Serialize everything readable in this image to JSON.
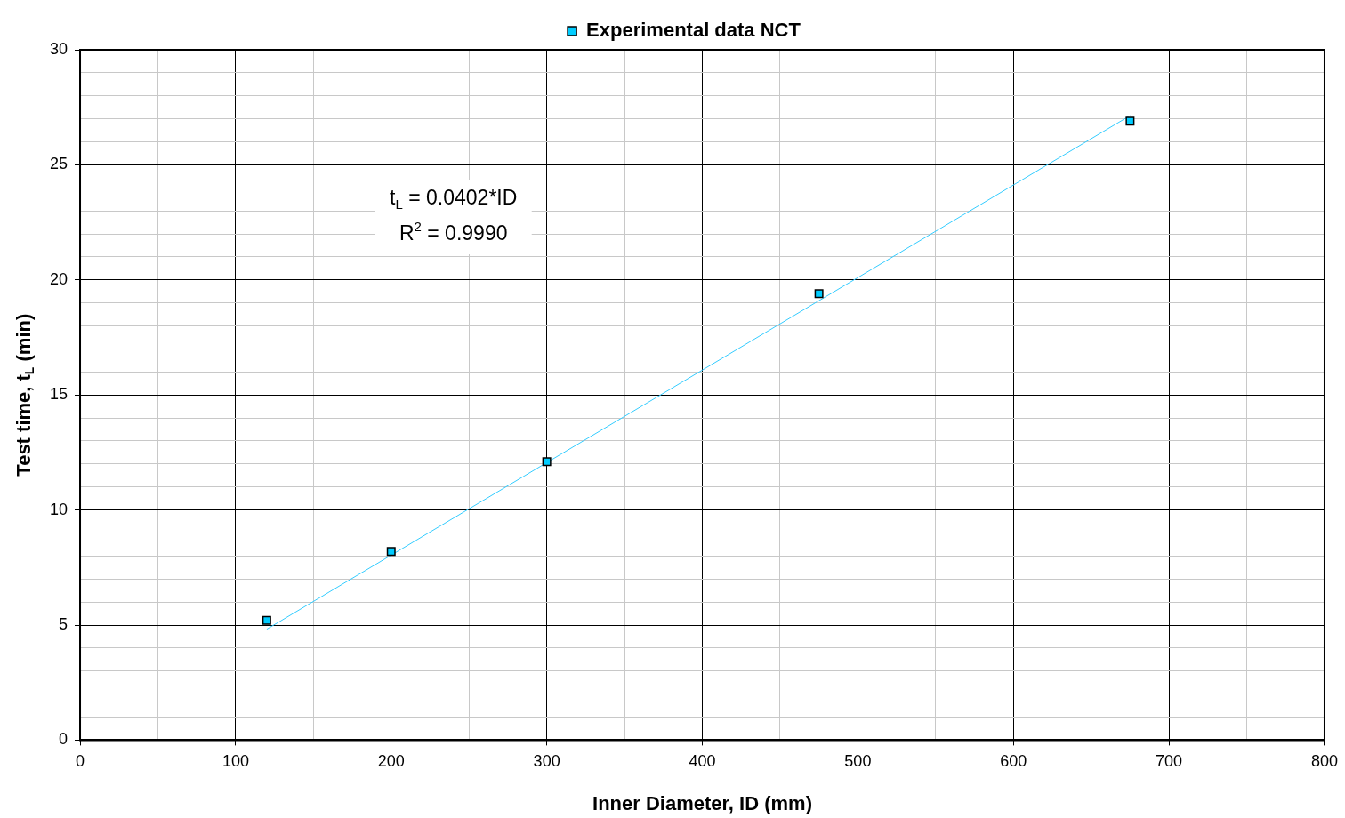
{
  "chart_data": {
    "type": "scatter",
    "xlabel": "Inner Diameter, ID (mm)",
    "ylabel": "Test time, t$_{L}$ (min)",
    "annotations": [
      "t$_{L}$ = 0.0402*ID",
      "R$^{2}$ = 0.9990"
    ],
    "xlim": [
      0,
      800
    ],
    "ylim": [
      0,
      30
    ],
    "xticks": [
      0,
      {
        "value": 50,
        "label": null
      },
      100,
      {
        "value": 150,
        "label": null
      },
      200,
      {
        "value": 250,
        "label": null
      },
      300,
      {
        "value": 350,
        "label": null
      },
      400,
      {
        "value": 450,
        "label": null
      },
      500,
      {
        "value": 550,
        "label": null
      },
      600,
      {
        "value": 650,
        "label": null
      },
      700,
      {
        "value": 750,
        "label": null
      },
      800
    ],
    "yticks": [
      0,
      {
        "value": 1,
        "label": null
      },
      {
        "value": 2,
        "label": null
      },
      {
        "value": 3,
        "label": null
      },
      {
        "value": 4,
        "label": null
      },
      5,
      {
        "value": 6,
        "label": null
      },
      {
        "value": 7,
        "label": null
      },
      {
        "value": 8,
        "label": null
      },
      {
        "value": 9,
        "label": null
      },
      10,
      {
        "value": 11,
        "label": null
      },
      {
        "value": 12,
        "label": null
      },
      {
        "value": 13,
        "label": null
      },
      {
        "value": 14,
        "label": null
      },
      15,
      {
        "value": 16,
        "label": null
      },
      {
        "value": 17,
        "label": null
      },
      {
        "value": 18,
        "label": null
      },
      {
        "value": 19,
        "label": null
      },
      20,
      {
        "value": 21,
        "label": null
      },
      {
        "value": 22,
        "label": null
      },
      {
        "value": 23,
        "label": null
      },
      {
        "value": 24,
        "label": null
      },
      25,
      {
        "value": 26,
        "label": null
      },
      {
        "value": 27,
        "label": null
      },
      {
        "value": 28,
        "label": null
      },
      {
        "value": 29,
        "label": null
      },
      30
    ],
    "grid": true,
    "legend": "top",
    "marker": "square",
    "series": [
      {
        "name": "Experimental data NCT",
        "type": "scatter",
        "color": "#00ccff",
        "x": [
          120,
          200,
          300,
          475,
          675
        ],
        "values": [
          5.2,
          8.2,
          12.1,
          19.4,
          26.9
        ]
      },
      {
        "type": "line",
        "marker": "none",
        "color": "#33ccff",
        "x": [
          120,
          675
        ],
        "values": [
          4.82,
          27.14
        ]
      }
    ]
  }
}
